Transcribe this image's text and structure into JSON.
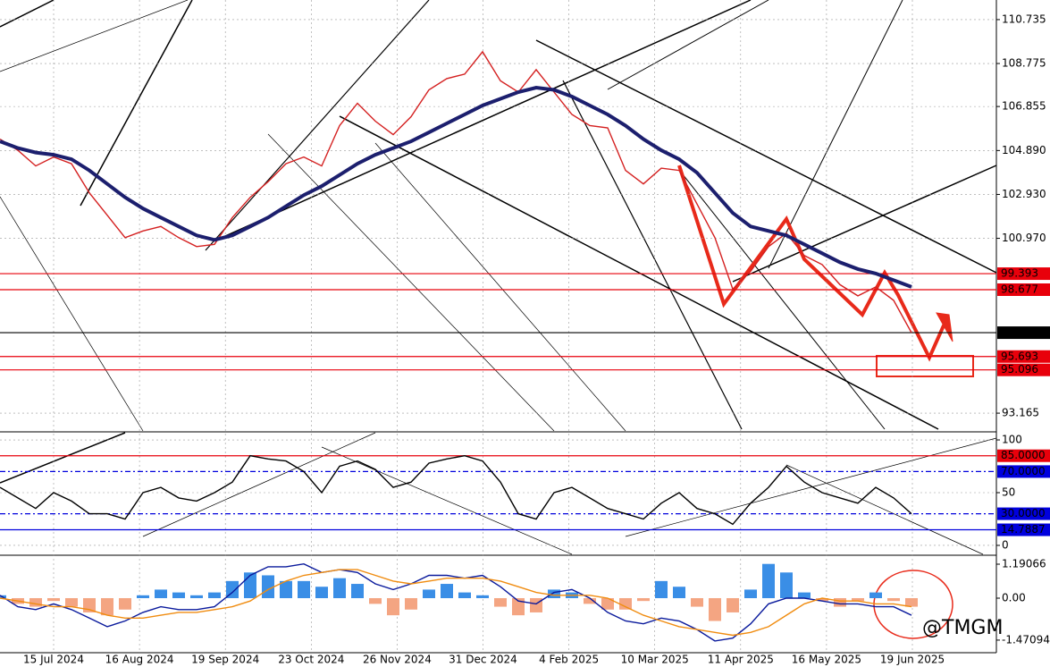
{
  "chart_data": [
    {
      "type": "line",
      "ylim": [
        92.37,
        111.61
      ],
      "yticks": [
        {
          "value": 110.735,
          "label": "110.735"
        },
        {
          "value": 108.775,
          "label": "108.775"
        },
        {
          "value": 106.855,
          "label": "106.855"
        },
        {
          "value": 104.89,
          "label": "104.890"
        },
        {
          "value": 102.93,
          "label": "102.930"
        },
        {
          "value": 100.97,
          "label": "100.970"
        },
        93.165
      ],
      "grid": true,
      "series": [
        {
          "color": "#d42020",
          "values": [
            105.4,
            104.9,
            104.2,
            104.6,
            104.3,
            103.0,
            102.0,
            101.0,
            101.3,
            101.5,
            101.0,
            100.6,
            100.7,
            101.9,
            102.8,
            103.5,
            104.3,
            104.6,
            104.2,
            106.0,
            107.0,
            106.2,
            105.6,
            106.4,
            107.6,
            108.1,
            108.3,
            109.3,
            108.0,
            107.5,
            108.5,
            107.5,
            106.5,
            106.0,
            105.9,
            104.0,
            103.4,
            104.1,
            104.0,
            102.5,
            101.0,
            98.7,
            99.5,
            100.6,
            101.2,
            100.2,
            99.8,
            98.9,
            98.4,
            98.8,
            98.2,
            96.758
          ]
        },
        {
          "color": "#1c1f6e",
          "values": [
            105.3,
            105.0,
            104.8,
            104.7,
            104.5,
            104.0,
            103.4,
            102.8,
            102.3,
            101.9,
            101.5,
            101.1,
            100.9,
            101.1,
            101.5,
            101.9,
            102.4,
            102.9,
            103.3,
            103.8,
            104.3,
            104.7,
            105.0,
            105.3,
            105.7,
            106.1,
            106.5,
            106.9,
            107.2,
            107.5,
            107.7,
            107.6,
            107.3,
            106.9,
            106.5,
            106.0,
            105.4,
            104.9,
            104.5,
            103.9,
            103.0,
            102.1,
            101.5,
            101.3,
            101.1,
            100.7,
            100.3,
            99.9,
            99.6,
            99.4,
            99.1,
            98.8
          ]
        }
      ],
      "levels": [
        {
          "value": 99.393,
          "color": "#e8000b"
        },
        {
          "value": 98.677,
          "color": "#e8000b"
        },
        {
          "value": 96.758,
          "color": "#000000"
        },
        {
          "value": 95.693,
          "color": "#e8000b"
        },
        {
          "value": 95.096,
          "color": "#e8000b"
        }
      ]
    },
    {
      "type": "line",
      "ylim": [
        -8.5,
        106.8
      ],
      "yticks": [
        100,
        50,
        0
      ],
      "grid": true,
      "series": [
        {
          "color": "#000000",
          "values": [
            55,
            45,
            35,
            50,
            42,
            30,
            30,
            25,
            50,
            55,
            45,
            42,
            50,
            60,
            85,
            82,
            80,
            70,
            50,
            75,
            80,
            72,
            55,
            60,
            78,
            82,
            85,
            80,
            60,
            30,
            25,
            50,
            55,
            45,
            35,
            30,
            25,
            40,
            50,
            35,
            30,
            20,
            40,
            55,
            75,
            60,
            50,
            45,
            40,
            55,
            45,
            30
          ]
        }
      ],
      "levels": [
        {
          "value": 85,
          "label": "85.0000",
          "color": "#e8000b"
        },
        {
          "value": 70,
          "label": "70.0000",
          "color": "#0000dd"
        },
        {
          "value": 30,
          "label": "30.0000",
          "color": "#0000dd"
        },
        {
          "value": 14.7887,
          "label": "14.7887",
          "color": "#0000dd"
        }
      ]
    },
    {
      "type": "bar",
      "ylim": [
        -1.912,
        1.473
      ],
      "yticks": [
        1.19066,
        {
          "value": 0,
          "label": "0.00"
        },
        -1.47094
      ],
      "grid": false,
      "values": [
        0.1,
        -0.2,
        -0.3,
        -0.1,
        -0.3,
        -0.5,
        -0.6,
        -0.4,
        0.1,
        0.3,
        0.2,
        0.1,
        0.2,
        0.6,
        0.9,
        0.8,
        0.6,
        0.6,
        0.4,
        0.7,
        0.5,
        -0.2,
        -0.6,
        -0.4,
        0.3,
        0.5,
        0.2,
        0.1,
        -0.3,
        -0.6,
        -0.5,
        0.3,
        0.2,
        -0.2,
        -0.4,
        -0.4,
        -0.1,
        0.6,
        0.4,
        -0.3,
        -0.8,
        -0.5,
        0.3,
        1.2,
        0.9,
        0.2,
        -0.1,
        -0.3,
        -0.1,
        0.2,
        -0.1,
        -0.3
      ],
      "colors": [
        "#3a8ee6",
        "#f4a582"
      ],
      "series": [
        {
          "color": "#0a1a9c",
          "values": [
            0.1,
            -0.3,
            -0.4,
            -0.2,
            -0.4,
            -0.7,
            -1.0,
            -0.8,
            -0.5,
            -0.3,
            -0.4,
            -0.4,
            -0.3,
            0.2,
            0.8,
            1.1,
            1.1,
            1.2,
            0.9,
            1.0,
            0.9,
            0.5,
            0.3,
            0.5,
            0.8,
            0.8,
            0.7,
            0.8,
            0.4,
            -0.1,
            -0.2,
            0.2,
            0.3,
            0.0,
            -0.5,
            -0.8,
            -0.9,
            -0.7,
            -0.8,
            -1.1,
            -1.5,
            -1.4,
            -0.9,
            -0.2,
            0.0,
            0.0,
            -0.1,
            -0.2,
            -0.2,
            -0.3,
            -0.3,
            -0.6
          ]
        },
        {
          "color": "#f08c10",
          "values": [
            0.0,
            -0.1,
            -0.2,
            -0.3,
            -0.3,
            -0.4,
            -0.6,
            -0.7,
            -0.7,
            -0.6,
            -0.5,
            -0.5,
            -0.4,
            -0.3,
            -0.1,
            0.3,
            0.6,
            0.8,
            0.9,
            1.0,
            1.0,
            0.8,
            0.6,
            0.5,
            0.6,
            0.7,
            0.7,
            0.7,
            0.6,
            0.4,
            0.2,
            0.1,
            0.1,
            0.1,
            0.0,
            -0.3,
            -0.6,
            -0.8,
            -1.0,
            -1.1,
            -1.2,
            -1.3,
            -1.2,
            -1.0,
            -0.6,
            -0.2,
            0.0,
            -0.1,
            -0.1,
            -0.2,
            -0.2,
            -0.3
          ]
        }
      ]
    }
  ],
  "time_axis": {
    "labels": [
      "15 Jul 2024",
      "16 Aug 2024",
      "19 Sep 2024",
      "23 Oct 2024",
      "26 Nov 2024",
      "31 Dec 2024",
      "4 Feb 2025",
      "10 Mar 2025",
      "11 Apr 2025",
      "16 May 2025",
      "19 Jun 2025"
    ]
  },
  "watermark": "@TMGM"
}
